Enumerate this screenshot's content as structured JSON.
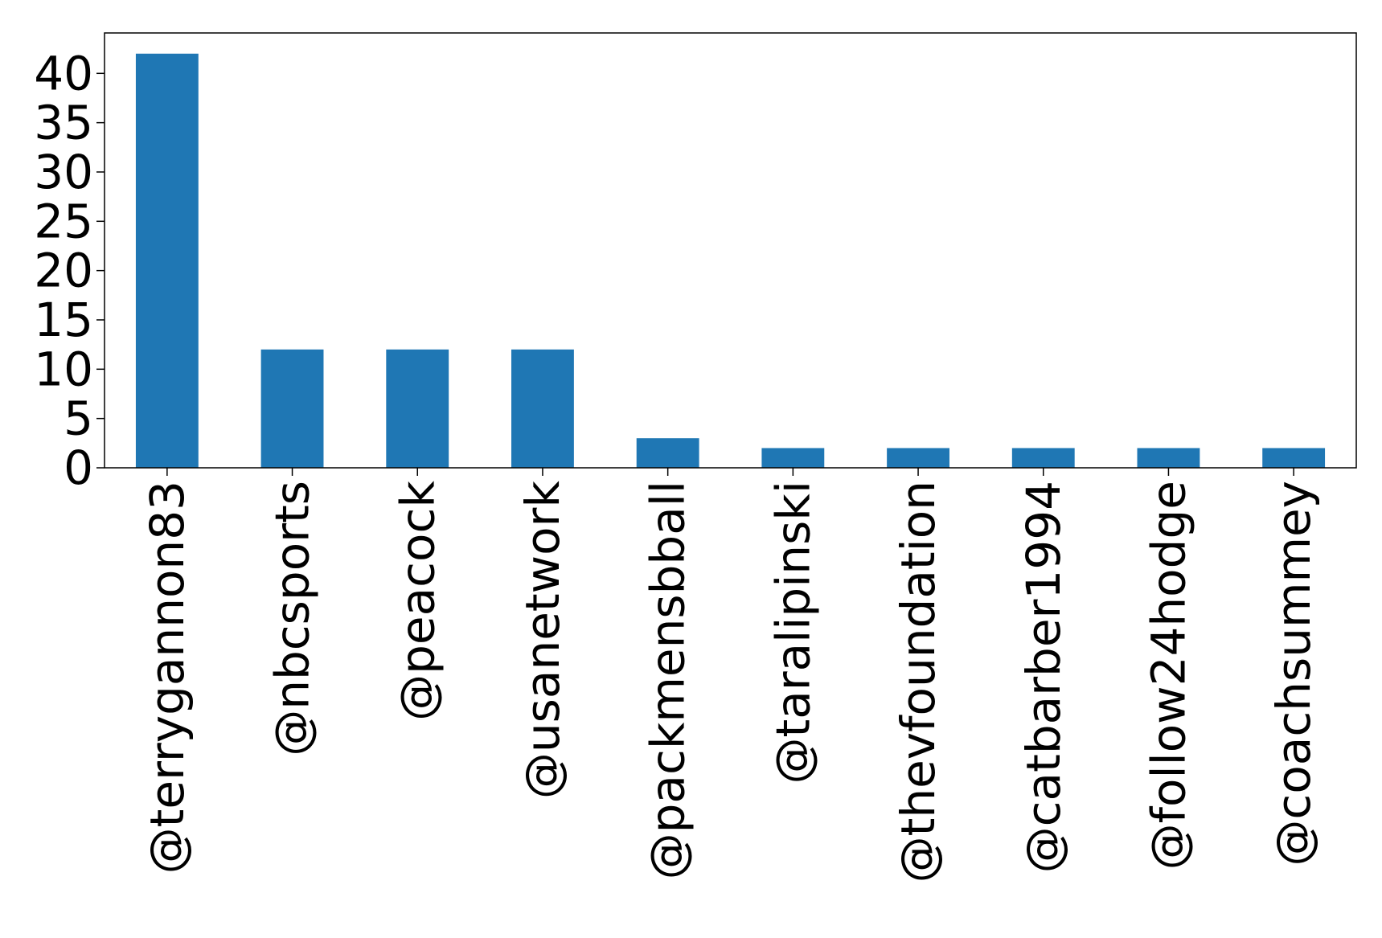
{
  "chart_data": {
    "type": "bar",
    "categories": [
      "@terrygannon83",
      "@nbcsports",
      "@peacock",
      "@usanetwork",
      "@packmensbball",
      "@taralipinski",
      "@thevfoundation",
      "@catbarber1994",
      "@follow24hodge",
      "@coachsummey"
    ],
    "values": [
      42,
      12,
      12,
      12,
      3,
      2,
      2,
      2,
      2,
      2
    ],
    "title": "",
    "xlabel": "",
    "ylabel": "",
    "ylim": [
      0,
      44.1
    ],
    "yticks": [
      0,
      5,
      10,
      15,
      20,
      25,
      30,
      35,
      40
    ],
    "grid": false,
    "legend": "none",
    "bar_color": "#1f77b4"
  }
}
